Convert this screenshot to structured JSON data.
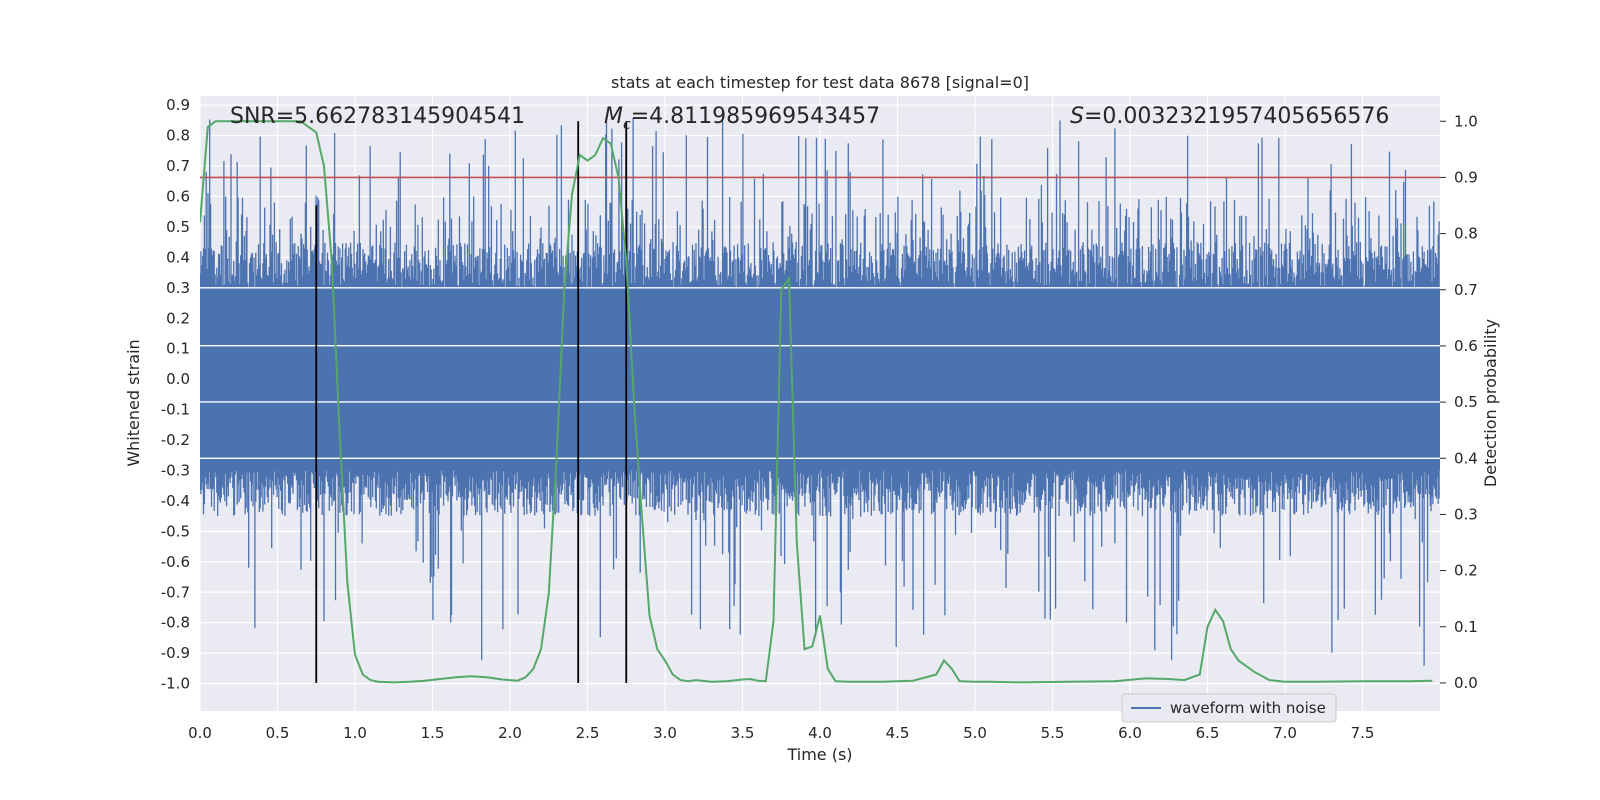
{
  "chart_data": {
    "type": "line",
    "title": "stats at each timestep for test data 8678 [signal=0]",
    "xlabel": "Time (s)",
    "ylabel_left": "Whitened strain",
    "ylabel_right": "Detection probability",
    "xlim": [
      0.0,
      8.0
    ],
    "ylim_left": [
      -1.09,
      0.93
    ],
    "ylim_right": [
      -0.05,
      1.045
    ],
    "x_ticks": [
      "0.0",
      "0.5",
      "1.0",
      "1.5",
      "2.0",
      "2.5",
      "3.0",
      "3.5",
      "4.0",
      "4.5",
      "5.0",
      "5.5",
      "6.0",
      "6.5",
      "7.0",
      "7.5"
    ],
    "x_tick_values": [
      0.0,
      0.5,
      1.0,
      1.5,
      2.0,
      2.5,
      3.0,
      3.5,
      4.0,
      4.5,
      5.0,
      5.5,
      6.0,
      6.5,
      7.0,
      7.5
    ],
    "y_left_ticks": [
      "0.9",
      "0.8",
      "0.7",
      "0.6",
      "0.5",
      "0.4",
      "0.3",
      "0.2",
      "0.1",
      "0.0",
      "-0.1",
      "-0.2",
      "-0.3",
      "-0.4",
      "-0.5",
      "-0.6",
      "-0.7",
      "-0.8",
      "-0.9",
      "-1.0"
    ],
    "y_left_tick_values": [
      0.9,
      0.8,
      0.7,
      0.6,
      0.5,
      0.4,
      0.3,
      0.2,
      0.1,
      0.0,
      -0.1,
      -0.2,
      -0.3,
      -0.4,
      -0.5,
      -0.6,
      -0.7,
      -0.8,
      -0.9,
      -1.0
    ],
    "y_right_ticks": [
      "1.0",
      "0.9",
      "0.8",
      "0.7",
      "0.6",
      "0.5",
      "0.4",
      "0.3",
      "0.2",
      "0.1",
      "0.0"
    ],
    "y_right_tick_values": [
      1.0,
      0.9,
      0.8,
      0.7,
      0.6,
      0.5,
      0.4,
      0.3,
      0.2,
      0.1,
      0.0
    ],
    "annotations": {
      "snr": "SNR=5.662783145904541",
      "mc_symbol": "M",
      "mc_sub": "c",
      "mc_value": "=4.811985969543457",
      "s_symbol": "S",
      "s_value": "=0.0032321957405656576"
    },
    "threshold": 0.9,
    "vertical_lines": [
      0.75,
      2.44,
      2.75
    ],
    "waveform": {
      "name": "waveform with noise",
      "color": "#4c72b0",
      "sample_count": 1400,
      "core_range": [
        -0.3,
        0.3
      ],
      "envelope_range": [
        -1.0,
        0.86
      ]
    },
    "probability": {
      "name": "detection probability",
      "color": "#55a868",
      "x": [
        0.0,
        0.05,
        0.1,
        0.15,
        0.2,
        0.3,
        0.4,
        0.5,
        0.6,
        0.65,
        0.7,
        0.75,
        0.8,
        0.85,
        0.9,
        0.95,
        1.0,
        1.05,
        1.1,
        1.15,
        1.25,
        1.35,
        1.45,
        1.55,
        1.65,
        1.75,
        1.85,
        1.95,
        2.05,
        2.1,
        2.15,
        2.2,
        2.25,
        2.3,
        2.35,
        2.4,
        2.45,
        2.5,
        2.55,
        2.6,
        2.65,
        2.7,
        2.75,
        2.8,
        2.85,
        2.9,
        2.95,
        3.0,
        3.05,
        3.1,
        3.15,
        3.2,
        3.3,
        3.4,
        3.5,
        3.55,
        3.6,
        3.65,
        3.7,
        3.75,
        3.8,
        3.85,
        3.9,
        3.95,
        4.0,
        4.05,
        4.1,
        4.2,
        4.4,
        4.6,
        4.75,
        4.8,
        4.85,
        4.9,
        5.0,
        5.1,
        5.3,
        5.6,
        5.9,
        6.1,
        6.25,
        6.35,
        6.45,
        6.5,
        6.55,
        6.6,
        6.65,
        6.7,
        6.8,
        6.9,
        7.0,
        7.2,
        7.5,
        7.8,
        7.95
      ],
      "y": [
        0.82,
        0.99,
        1.0,
        1.0,
        1.0,
        1.0,
        1.0,
        1.0,
        1.0,
        1.0,
        0.99,
        0.98,
        0.92,
        0.75,
        0.45,
        0.18,
        0.05,
        0.015,
        0.005,
        0.002,
        0.001,
        0.002,
        0.004,
        0.007,
        0.01,
        0.012,
        0.01,
        0.006,
        0.004,
        0.01,
        0.025,
        0.06,
        0.16,
        0.4,
        0.7,
        0.87,
        0.94,
        0.93,
        0.94,
        0.97,
        0.96,
        0.9,
        0.75,
        0.5,
        0.3,
        0.12,
        0.06,
        0.04,
        0.015,
        0.005,
        0.003,
        0.005,
        0.002,
        0.003,
        0.006,
        0.007,
        0.004,
        0.003,
        0.11,
        0.7,
        0.72,
        0.25,
        0.06,
        0.065,
        0.12,
        0.025,
        0.003,
        0.002,
        0.002,
        0.004,
        0.015,
        0.04,
        0.025,
        0.003,
        0.002,
        0.002,
        0.001,
        0.002,
        0.003,
        0.008,
        0.007,
        0.005,
        0.015,
        0.1,
        0.13,
        0.11,
        0.06,
        0.04,
        0.02,
        0.005,
        0.002,
        0.002,
        0.003,
        0.003,
        0.004
      ]
    }
  },
  "legend": {
    "label": "waveform with noise"
  }
}
